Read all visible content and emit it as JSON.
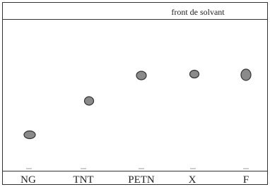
{
  "solvent_front": {
    "label": "front de solvant"
  },
  "lanes": [
    {
      "label": "NG"
    },
    {
      "label": "TNT"
    },
    {
      "label": "PETN"
    },
    {
      "label": "X"
    },
    {
      "label": "F"
    }
  ]
}
